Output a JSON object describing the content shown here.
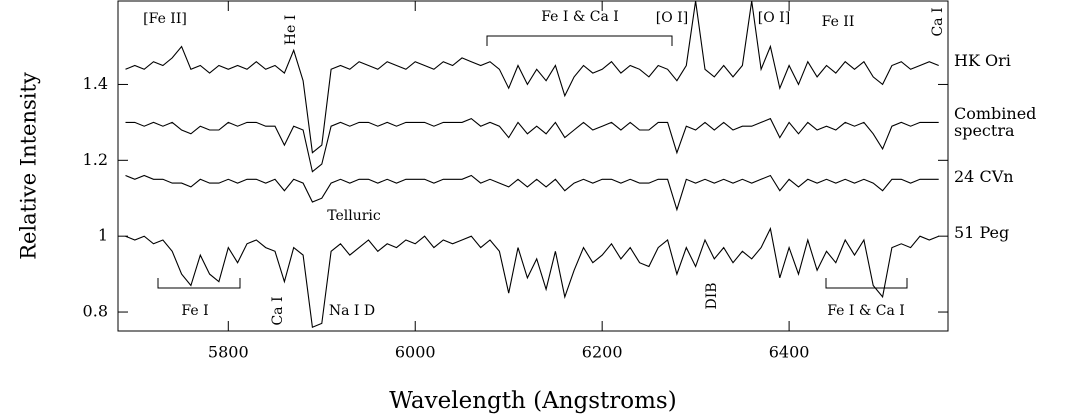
{
  "chart_data": {
    "type": "line",
    "x_label": "Wavelength (Angstroms)",
    "y_label": "Relative Intensity",
    "x": [
      5690,
      5700,
      5710,
      5720,
      5730,
      5740,
      5750,
      5760,
      5770,
      5780,
      5790,
      5800,
      5810,
      5820,
      5830,
      5840,
      5850,
      5860,
      5870,
      5880,
      5890,
      5900,
      5910,
      5920,
      5930,
      5940,
      5950,
      5960,
      5970,
      5980,
      5990,
      6000,
      6010,
      6020,
      6030,
      6040,
      6050,
      6060,
      6070,
      6080,
      6090,
      6100,
      6110,
      6120,
      6130,
      6140,
      6150,
      6160,
      6170,
      6180,
      6190,
      6200,
      6210,
      6220,
      6230,
      6240,
      6250,
      6260,
      6270,
      6280,
      6290,
      6300,
      6310,
      6320,
      6330,
      6340,
      6350,
      6360,
      6370,
      6380,
      6390,
      6400,
      6410,
      6420,
      6430,
      6440,
      6450,
      6460,
      6470,
      6480,
      6490,
      6500,
      6510,
      6520,
      6530,
      6540,
      6550,
      6560
    ],
    "series": [
      {
        "name": "HK Ori",
        "color": "#000000",
        "values": [
          1.44,
          1.45,
          1.44,
          1.46,
          1.45,
          1.47,
          1.5,
          1.44,
          1.45,
          1.43,
          1.45,
          1.44,
          1.45,
          1.44,
          1.46,
          1.44,
          1.45,
          1.43,
          1.49,
          1.41,
          1.22,
          1.24,
          1.44,
          1.45,
          1.44,
          1.46,
          1.45,
          1.44,
          1.46,
          1.45,
          1.44,
          1.46,
          1.45,
          1.44,
          1.46,
          1.45,
          1.47,
          1.46,
          1.45,
          1.46,
          1.44,
          1.39,
          1.45,
          1.4,
          1.44,
          1.41,
          1.45,
          1.37,
          1.42,
          1.45,
          1.43,
          1.44,
          1.46,
          1.43,
          1.45,
          1.44,
          1.42,
          1.45,
          1.44,
          1.41,
          1.45,
          1.62,
          1.44,
          1.42,
          1.45,
          1.42,
          1.45,
          1.62,
          1.44,
          1.5,
          1.39,
          1.45,
          1.4,
          1.46,
          1.42,
          1.45,
          1.43,
          1.46,
          1.44,
          1.46,
          1.42,
          1.4,
          1.45,
          1.46,
          1.44,
          1.45,
          1.46,
          1.45
        ]
      },
      {
        "name": "Combined spectra",
        "color": "#000000",
        "values": [
          1.3,
          1.3,
          1.29,
          1.3,
          1.29,
          1.3,
          1.28,
          1.27,
          1.29,
          1.28,
          1.28,
          1.3,
          1.29,
          1.3,
          1.3,
          1.29,
          1.29,
          1.24,
          1.29,
          1.28,
          1.17,
          1.19,
          1.29,
          1.3,
          1.29,
          1.3,
          1.3,
          1.29,
          1.3,
          1.29,
          1.3,
          1.3,
          1.3,
          1.29,
          1.3,
          1.3,
          1.3,
          1.31,
          1.29,
          1.3,
          1.29,
          1.26,
          1.3,
          1.27,
          1.29,
          1.27,
          1.3,
          1.26,
          1.28,
          1.3,
          1.28,
          1.29,
          1.3,
          1.28,
          1.3,
          1.28,
          1.28,
          1.3,
          1.3,
          1.22,
          1.29,
          1.28,
          1.3,
          1.28,
          1.3,
          1.28,
          1.29,
          1.29,
          1.3,
          1.31,
          1.26,
          1.3,
          1.27,
          1.3,
          1.28,
          1.29,
          1.28,
          1.3,
          1.29,
          1.3,
          1.27,
          1.23,
          1.29,
          1.3,
          1.29,
          1.3,
          1.3,
          1.3
        ]
      },
      {
        "name": "24 CVn",
        "color": "#000000",
        "values": [
          1.16,
          1.15,
          1.16,
          1.15,
          1.15,
          1.14,
          1.14,
          1.13,
          1.15,
          1.14,
          1.14,
          1.15,
          1.14,
          1.15,
          1.15,
          1.14,
          1.15,
          1.12,
          1.15,
          1.14,
          1.09,
          1.1,
          1.14,
          1.15,
          1.14,
          1.15,
          1.15,
          1.14,
          1.15,
          1.14,
          1.15,
          1.15,
          1.15,
          1.14,
          1.15,
          1.15,
          1.15,
          1.16,
          1.14,
          1.15,
          1.14,
          1.13,
          1.15,
          1.13,
          1.15,
          1.13,
          1.15,
          1.12,
          1.14,
          1.15,
          1.14,
          1.15,
          1.15,
          1.14,
          1.15,
          1.14,
          1.14,
          1.15,
          1.15,
          1.07,
          1.15,
          1.14,
          1.15,
          1.14,
          1.15,
          1.14,
          1.15,
          1.14,
          1.15,
          1.16,
          1.12,
          1.15,
          1.13,
          1.15,
          1.14,
          1.15,
          1.14,
          1.15,
          1.14,
          1.15,
          1.14,
          1.12,
          1.15,
          1.15,
          1.14,
          1.15,
          1.15,
          1.15
        ]
      },
      {
        "name": "51 Peg",
        "color": "#000000",
        "values": [
          1.0,
          0.99,
          1.0,
          0.98,
          0.99,
          0.96,
          0.9,
          0.87,
          0.95,
          0.9,
          0.88,
          0.97,
          0.93,
          0.98,
          0.99,
          0.97,
          0.96,
          0.88,
          0.97,
          0.95,
          0.76,
          0.77,
          0.96,
          0.98,
          0.95,
          0.97,
          0.99,
          0.96,
          0.98,
          0.97,
          0.99,
          0.98,
          1.0,
          0.97,
          0.99,
          0.98,
          0.99,
          1.0,
          0.97,
          0.99,
          0.96,
          0.85,
          0.97,
          0.89,
          0.94,
          0.86,
          0.96,
          0.84,
          0.91,
          0.97,
          0.93,
          0.95,
          0.98,
          0.94,
          0.97,
          0.93,
          0.92,
          0.97,
          0.99,
          0.9,
          0.97,
          0.92,
          0.99,
          0.94,
          0.97,
          0.93,
          0.96,
          0.94,
          0.97,
          1.02,
          0.89,
          0.97,
          0.9,
          0.99,
          0.91,
          0.96,
          0.93,
          0.99,
          0.95,
          0.99,
          0.87,
          0.84,
          0.97,
          0.98,
          0.97,
          1.0,
          0.99,
          1.0
        ]
      }
    ],
    "xlim": [
      5682,
      6570
    ],
    "ylim": [
      0.75,
      1.62
    ],
    "xticks": [
      5800,
      6000,
      6200,
      6400
    ],
    "yticks": [
      0.8,
      1,
      1.2,
      1.4
    ],
    "annotations": [
      "[Fe II]",
      "He I",
      "Fe I & Ca I",
      "[O I]",
      "[O I]",
      "Fe II",
      "Ca I",
      "Telluric",
      "Fe I",
      "Ca I",
      "Na I D",
      "DIB",
      "Fe I & Ca I"
    ]
  }
}
